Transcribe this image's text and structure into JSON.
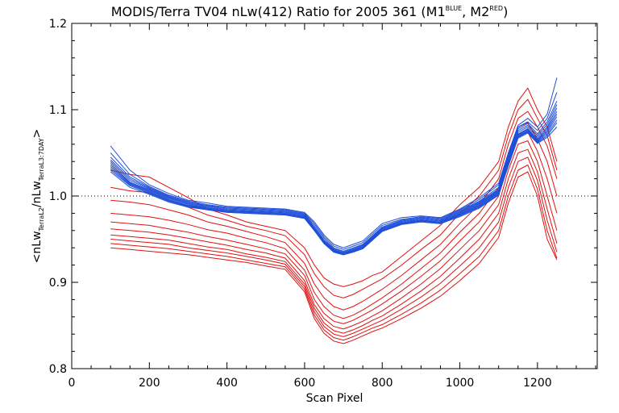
{
  "chart_data": {
    "type": "line",
    "title": {
      "main": "MODIS/Terra TV04 nLw(412) Ratio for 2005 361 (M1",
      "sup1": "BLUE",
      "mid": ", M2",
      "sup2": "RED",
      "end": ")"
    },
    "xlabel": "Scan Pixel",
    "ylabel": {
      "open": "<nLw",
      "sub1": "TerraL2",
      "slash": "/nLw",
      "sub2": "TerraL3:7DAY",
      "close": ">"
    },
    "xlim": [
      0,
      1354
    ],
    "ylim": [
      0.8,
      1.2
    ],
    "x_ticks": [
      0,
      200,
      400,
      600,
      800,
      1000,
      1200
    ],
    "x_tick_labels": [
      "0",
      "200",
      "400",
      "600",
      "800",
      "1000",
      "1200"
    ],
    "y_ticks": [
      0.8,
      0.9,
      1.0,
      1.1,
      1.2
    ],
    "y_tick_labels": [
      "0.8",
      "0.9",
      "1.0",
      "1.1",
      "1.2"
    ],
    "reference_line": {
      "y": 1.0,
      "style": "dotted"
    },
    "colors": {
      "blue": "#1f4fd8",
      "red": "#e01010",
      "axis": "#000000"
    },
    "x": [
      100,
      150,
      200,
      250,
      300,
      350,
      400,
      450,
      500,
      550,
      600,
      625,
      650,
      675,
      700,
      725,
      750,
      775,
      800,
      850,
      900,
      950,
      1000,
      1050,
      1100,
      1125,
      1150,
      1175,
      1200,
      1225,
      1250
    ],
    "series": [
      {
        "color": "blue",
        "values": [
          1.058,
          1.03,
          1.013,
          1.003,
          0.995,
          0.992,
          0.988,
          0.987,
          0.986,
          0.985,
          0.981,
          0.97,
          0.955,
          0.944,
          0.94,
          0.944,
          0.948,
          0.958,
          0.968,
          0.975,
          0.977,
          0.975,
          0.985,
          0.998,
          1.015,
          1.05,
          1.082,
          1.09,
          1.08,
          1.095,
          1.137
        ]
      },
      {
        "color": "blue",
        "values": [
          1.05,
          1.025,
          1.011,
          1.001,
          0.994,
          0.99,
          0.987,
          0.986,
          0.985,
          0.984,
          0.98,
          0.968,
          0.953,
          0.942,
          0.938,
          0.942,
          0.946,
          0.956,
          0.966,
          0.973,
          0.976,
          0.974,
          0.984,
          0.996,
          1.013,
          1.048,
          1.08,
          1.086,
          1.076,
          1.09,
          1.12
        ]
      },
      {
        "color": "blue",
        "values": [
          1.045,
          1.022,
          1.01,
          1.0,
          0.993,
          0.989,
          0.986,
          0.985,
          0.984,
          0.983,
          0.979,
          0.966,
          0.951,
          0.94,
          0.936,
          0.94,
          0.944,
          0.954,
          0.964,
          0.972,
          0.975,
          0.973,
          0.983,
          0.994,
          1.01,
          1.046,
          1.078,
          1.084,
          1.072,
          1.086,
          1.11
        ]
      },
      {
        "color": "blue",
        "values": [
          1.042,
          1.02,
          1.009,
          0.999,
          0.992,
          0.988,
          0.985,
          0.984,
          0.983,
          0.982,
          0.978,
          0.964,
          0.949,
          0.939,
          0.935,
          0.939,
          0.943,
          0.953,
          0.963,
          0.971,
          0.974,
          0.972,
          0.982,
          0.993,
          1.008,
          1.044,
          1.076,
          1.082,
          1.07,
          1.083,
          1.106
        ]
      },
      {
        "color": "blue",
        "values": [
          1.04,
          1.018,
          1.008,
          0.998,
          0.991,
          0.987,
          0.984,
          0.983,
          0.982,
          0.981,
          0.977,
          0.963,
          0.948,
          0.938,
          0.934,
          0.938,
          0.942,
          0.952,
          0.962,
          0.97,
          0.973,
          0.971,
          0.981,
          0.992,
          1.007,
          1.042,
          1.074,
          1.08,
          1.068,
          1.08,
          1.102
        ]
      },
      {
        "color": "blue",
        "values": [
          1.038,
          1.016,
          1.007,
          0.997,
          0.99,
          0.986,
          0.983,
          0.982,
          0.981,
          0.98,
          0.976,
          0.962,
          0.947,
          0.937,
          0.933,
          0.937,
          0.941,
          0.951,
          0.961,
          0.969,
          0.972,
          0.97,
          0.98,
          0.991,
          1.006,
          1.04,
          1.072,
          1.078,
          1.066,
          1.078,
          1.098
        ]
      },
      {
        "color": "blue",
        "values": [
          1.036,
          1.015,
          1.006,
          0.996,
          0.989,
          0.986,
          0.983,
          0.982,
          0.981,
          0.98,
          0.976,
          0.962,
          0.947,
          0.937,
          0.934,
          0.937,
          0.941,
          0.951,
          0.961,
          0.969,
          0.972,
          0.97,
          0.979,
          0.99,
          1.005,
          1.039,
          1.071,
          1.077,
          1.065,
          1.076,
          1.095
        ]
      },
      {
        "color": "blue",
        "values": [
          1.034,
          1.014,
          1.005,
          0.995,
          0.989,
          0.985,
          0.982,
          0.981,
          0.98,
          0.979,
          0.975,
          0.961,
          0.946,
          0.936,
          0.933,
          0.936,
          0.94,
          0.95,
          0.96,
          0.968,
          0.971,
          0.969,
          0.978,
          0.989,
          1.004,
          1.038,
          1.07,
          1.076,
          1.064,
          1.074,
          1.092
        ]
      },
      {
        "color": "blue",
        "values": [
          1.032,
          1.013,
          1.004,
          0.995,
          0.988,
          0.985,
          0.982,
          0.981,
          0.98,
          0.979,
          0.975,
          0.961,
          0.946,
          0.936,
          0.933,
          0.936,
          0.94,
          0.95,
          0.96,
          0.968,
          0.971,
          0.969,
          0.978,
          0.988,
          1.003,
          1.037,
          1.069,
          1.075,
          1.063,
          1.072,
          1.088
        ]
      },
      {
        "color": "blue",
        "values": [
          1.03,
          1.012,
          1.003,
          0.994,
          0.988,
          0.984,
          0.981,
          0.98,
          0.979,
          0.978,
          0.974,
          0.96,
          0.945,
          0.935,
          0.932,
          0.935,
          0.939,
          0.949,
          0.959,
          0.967,
          0.97,
          0.968,
          0.977,
          0.987,
          1.002,
          1.036,
          1.068,
          1.074,
          1.062,
          1.07,
          1.085
        ]
      },
      {
        "color": "blue",
        "values": [
          1.028,
          1.01,
          1.002,
          0.993,
          0.987,
          0.984,
          0.981,
          0.98,
          0.979,
          0.978,
          0.974,
          0.96,
          0.945,
          0.935,
          0.932,
          0.935,
          0.939,
          0.949,
          0.959,
          0.967,
          0.97,
          0.968,
          0.976,
          0.986,
          1.001,
          1.035,
          1.067,
          1.073,
          1.061,
          1.068,
          1.08
        ]
      },
      {
        "color": "red",
        "values": [
          1.03,
          1.025,
          1.022,
          1.01,
          0.998,
          0.985,
          0.978,
          0.97,
          0.965,
          0.96,
          0.94,
          0.92,
          0.905,
          0.898,
          0.895,
          0.898,
          0.902,
          0.908,
          0.912,
          0.93,
          0.948,
          0.966,
          0.99,
          1.01,
          1.04,
          1.08,
          1.11,
          1.125,
          1.1,
          1.08,
          1.04
        ]
      },
      {
        "color": "red",
        "values": [
          1.01,
          1.006,
          1.004,
          0.995,
          0.987,
          0.978,
          0.972,
          0.965,
          0.96,
          0.954,
          0.932,
          0.91,
          0.895,
          0.885,
          0.882,
          0.886,
          0.892,
          0.898,
          0.904,
          0.92,
          0.938,
          0.955,
          0.98,
          1.0,
          1.03,
          1.07,
          1.1,
          1.112,
          1.09,
          1.07,
          1.03
        ]
      },
      {
        "color": "red",
        "values": [
          0.995,
          0.993,
          0.99,
          0.984,
          0.978,
          0.97,
          0.965,
          0.959,
          0.953,
          0.946,
          0.922,
          0.898,
          0.882,
          0.872,
          0.868,
          0.872,
          0.878,
          0.885,
          0.892,
          0.908,
          0.926,
          0.944,
          0.968,
          0.99,
          1.02,
          1.06,
          1.09,
          1.098,
          1.08,
          1.058,
          1.02
        ]
      },
      {
        "color": "red",
        "values": [
          0.98,
          0.978,
          0.976,
          0.972,
          0.967,
          0.961,
          0.957,
          0.951,
          0.946,
          0.939,
          0.914,
          0.888,
          0.872,
          0.862,
          0.858,
          0.862,
          0.868,
          0.875,
          0.882,
          0.898,
          0.916,
          0.934,
          0.958,
          0.98,
          1.01,
          1.05,
          1.08,
          1.085,
          1.066,
          1.04,
          1.0
        ]
      },
      {
        "color": "red",
        "values": [
          0.97,
          0.968,
          0.966,
          0.962,
          0.958,
          0.953,
          0.949,
          0.944,
          0.939,
          0.933,
          0.908,
          0.88,
          0.864,
          0.855,
          0.852,
          0.856,
          0.862,
          0.868,
          0.875,
          0.89,
          0.907,
          0.925,
          0.948,
          0.97,
          1.0,
          1.04,
          1.07,
          1.074,
          1.052,
          1.02,
          0.98
        ]
      },
      {
        "color": "red",
        "values": [
          0.962,
          0.96,
          0.958,
          0.955,
          0.951,
          0.947,
          0.943,
          0.938,
          0.934,
          0.928,
          0.902,
          0.874,
          0.858,
          0.849,
          0.846,
          0.85,
          0.855,
          0.861,
          0.867,
          0.882,
          0.898,
          0.916,
          0.938,
          0.96,
          0.99,
          1.03,
          1.06,
          1.064,
          1.04,
          1.0,
          0.96
        ]
      },
      {
        "color": "red",
        "values": [
          0.955,
          0.953,
          0.951,
          0.949,
          0.945,
          0.941,
          0.938,
          0.933,
          0.929,
          0.924,
          0.898,
          0.87,
          0.853,
          0.844,
          0.841,
          0.845,
          0.85,
          0.856,
          0.861,
          0.875,
          0.89,
          0.907,
          0.928,
          0.95,
          0.98,
          1.02,
          1.05,
          1.054,
          1.028,
          0.985,
          0.945
        ]
      },
      {
        "color": "red",
        "values": [
          0.95,
          0.948,
          0.946,
          0.944,
          0.94,
          0.937,
          0.934,
          0.93,
          0.926,
          0.921,
          0.895,
          0.866,
          0.849,
          0.84,
          0.837,
          0.841,
          0.846,
          0.851,
          0.856,
          0.869,
          0.883,
          0.899,
          0.919,
          0.94,
          0.97,
          1.01,
          1.04,
          1.045,
          1.018,
          0.972,
          0.935
        ]
      },
      {
        "color": "red",
        "values": [
          0.945,
          0.943,
          0.941,
          0.939,
          0.936,
          0.933,
          0.93,
          0.926,
          0.922,
          0.918,
          0.892,
          0.862,
          0.845,
          0.836,
          0.833,
          0.837,
          0.842,
          0.847,
          0.851,
          0.863,
          0.876,
          0.891,
          0.91,
          0.93,
          0.96,
          1.0,
          1.03,
          1.036,
          1.008,
          0.96,
          0.928
        ]
      },
      {
        "color": "red",
        "values": [
          0.94,
          0.938,
          0.936,
          0.934,
          0.932,
          0.929,
          0.926,
          0.923,
          0.919,
          0.915,
          0.889,
          0.858,
          0.841,
          0.832,
          0.829,
          0.833,
          0.838,
          0.843,
          0.847,
          0.858,
          0.87,
          0.884,
          0.902,
          0.922,
          0.952,
          0.992,
          1.022,
          1.028,
          1.0,
          0.95,
          0.926
        ]
      }
    ]
  }
}
